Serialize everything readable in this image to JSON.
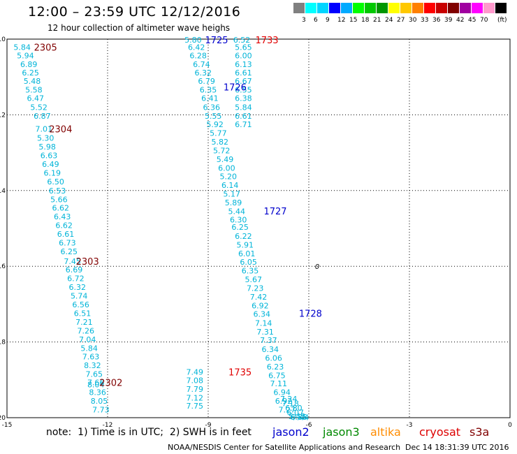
{
  "header": {
    "title": "12:00 – 23:59 UTC 12/12/2016",
    "subtitle": "12 hour collection of altimeter wave heighs"
  },
  "color_scale": {
    "labels": [
      "3",
      "6",
      "9",
      "12",
      "15",
      "18",
      "21",
      "24",
      "27",
      "30",
      "33",
      "36",
      "39",
      "42",
      "45",
      "70"
    ],
    "unit": "(ft)",
    "colors": [
      "#808080",
      "#00ffff",
      "#00d5ff",
      "#0000ff",
      "#00aaff",
      "#00ff00",
      "#00c800",
      "#009600",
      "#ffff00",
      "#ffc800",
      "#ff8000",
      "#ff0000",
      "#c80000",
      "#800000",
      "#a000a0",
      "#ff00ff",
      "#ff99cc",
      "#000000"
    ]
  },
  "chart_data": {
    "type": "scatter",
    "title": "12:00 – 23:59 UTC 12/12/2016",
    "subtitle": "12 hour collection of altimeter wave heighs",
    "xlim": [
      -15,
      0
    ],
    "ylim": [
      -20,
      -10
    ],
    "x_ticks": [
      "-15",
      "-12",
      "-9",
      "-6",
      "-3",
      "0"
    ],
    "y_ticks": [
      "-10",
      "-12",
      "-14",
      "-16",
      "-18",
      "-20"
    ],
    "grid": true,
    "value_color": "#00b4d8",
    "time_labels": [
      {
        "text": "2305",
        "x": -13.85,
        "y": -10.21,
        "color": "#800000"
      },
      {
        "text": "2304",
        "x": -13.4,
        "y": -12.37,
        "color": "#800000"
      },
      {
        "text": "2303",
        "x": -12.6,
        "y": -15.87,
        "color": "#800000"
      },
      {
        "text": "2302",
        "x": -11.9,
        "y": -19.07,
        "color": "#800000"
      },
      {
        "text": "1725",
        "x": -8.75,
        "y": -10.02,
        "color": "#0000cc"
      },
      {
        "text": "1733",
        "x": -7.25,
        "y": -10.02,
        "color": "#e00000"
      },
      {
        "text": "1726",
        "x": -8.2,
        "y": -11.26,
        "color": "#0000cc"
      },
      {
        "text": "1727",
        "x": -7.0,
        "y": -14.54,
        "color": "#0000cc"
      },
      {
        "text": "1728",
        "x": -5.95,
        "y": -17.24,
        "color": "#0000cc"
      },
      {
        "text": "1735",
        "x": -8.05,
        "y": -18.79,
        "color": "#e00000"
      }
    ],
    "tracks": [
      {
        "name": "",
        "points": [
          {
            "x": -14.55,
            "y": -10.21,
            "v": "5.84"
          },
          {
            "x": -14.45,
            "y": -10.43,
            "v": "5.94"
          },
          {
            "x": -14.35,
            "y": -10.66,
            "v": "6.89"
          },
          {
            "x": -14.3,
            "y": -10.89,
            "v": "6.25"
          },
          {
            "x": -14.25,
            "y": -11.11,
            "v": "5.48"
          },
          {
            "x": -14.2,
            "y": -11.34,
            "v": "5.58"
          },
          {
            "x": -14.15,
            "y": -11.56,
            "v": "6.47"
          },
          {
            "x": -14.05,
            "y": -11.8,
            "v": "5.52"
          },
          {
            "x": -13.95,
            "y": -12.03,
            "v": "6.87"
          },
          {
            "x": -13.9,
            "y": -12.37,
            "v": "7.01"
          },
          {
            "x": -13.85,
            "y": -12.61,
            "v": "5.30"
          },
          {
            "x": -13.8,
            "y": -12.84,
            "v": "5.98"
          },
          {
            "x": -13.75,
            "y": -13.07,
            "v": "6.63"
          },
          {
            "x": -13.7,
            "y": -13.3,
            "v": "6.49"
          },
          {
            "x": -13.65,
            "y": -13.53,
            "v": "6.19"
          },
          {
            "x": -13.55,
            "y": -13.76,
            "v": "6.50"
          },
          {
            "x": -13.5,
            "y": -14.0,
            "v": "6.53"
          },
          {
            "x": -13.45,
            "y": -14.23,
            "v": "5.66"
          },
          {
            "x": -13.4,
            "y": -14.46,
            "v": "6.62"
          },
          {
            "x": -13.35,
            "y": -14.69,
            "v": "6.43"
          },
          {
            "x": -13.3,
            "y": -14.92,
            "v": "6.62"
          },
          {
            "x": -13.25,
            "y": -15.15,
            "v": "6.61"
          },
          {
            "x": -13.2,
            "y": -15.38,
            "v": "6.73"
          },
          {
            "x": -13.15,
            "y": -15.61,
            "v": "6.25"
          },
          {
            "x": -13.05,
            "y": -15.87,
            "v": "7.45"
          },
          {
            "x": -13.0,
            "y": -16.09,
            "v": "6.69"
          },
          {
            "x": -12.95,
            "y": -16.32,
            "v": "6.72"
          },
          {
            "x": -12.9,
            "y": -16.55,
            "v": "6.32"
          },
          {
            "x": -12.85,
            "y": -16.78,
            "v": "5.74"
          },
          {
            "x": -12.8,
            "y": -17.01,
            "v": "6.56"
          },
          {
            "x": -12.75,
            "y": -17.24,
            "v": "6.51"
          },
          {
            "x": -12.7,
            "y": -17.47,
            "v": "7.21"
          },
          {
            "x": -12.65,
            "y": -17.7,
            "v": "7.26"
          },
          {
            "x": -12.6,
            "y": -17.93,
            "v": "7.04"
          },
          {
            "x": -12.55,
            "y": -18.16,
            "v": "5.84"
          },
          {
            "x": -12.5,
            "y": -18.39,
            "v": "7.63"
          },
          {
            "x": -12.45,
            "y": -18.62,
            "v": "8.32"
          },
          {
            "x": -12.4,
            "y": -18.85,
            "v": "7.65"
          },
          {
            "x": -12.35,
            "y": -19.07,
            "v": "7.66"
          },
          {
            "x": -12.35,
            "y": -19.12,
            "v": "8.04"
          },
          {
            "x": -12.3,
            "y": -19.33,
            "v": "8.36"
          },
          {
            "x": -12.25,
            "y": -19.56,
            "v": "8.05"
          },
          {
            "x": -12.2,
            "y": -19.79,
            "v": "7.73"
          }
        ]
      },
      {
        "name": "",
        "points": [
          {
            "x": -9.45,
            "y": -10.02,
            "v": "5.80"
          },
          {
            "x": -9.35,
            "y": -10.21,
            "v": "6.42"
          },
          {
            "x": -9.3,
            "y": -10.43,
            "v": "6.28"
          },
          {
            "x": -9.2,
            "y": -10.66,
            "v": "6.74"
          },
          {
            "x": -9.15,
            "y": -10.89,
            "v": "6.32"
          },
          {
            "x": -9.05,
            "y": -11.11,
            "v": "6.79"
          },
          {
            "x": -9.0,
            "y": -11.34,
            "v": "6.35"
          },
          {
            "x": -8.95,
            "y": -11.56,
            "v": "6.41"
          },
          {
            "x": -8.9,
            "y": -11.8,
            "v": "6.36"
          },
          {
            "x": -8.85,
            "y": -12.03,
            "v": "5.55"
          },
          {
            "x": -8.8,
            "y": -12.25,
            "v": "5.92"
          },
          {
            "x": -8.7,
            "y": -12.48,
            "v": "5.77"
          },
          {
            "x": -8.65,
            "y": -12.71,
            "v": "5.82"
          },
          {
            "x": -8.6,
            "y": -12.94,
            "v": "5.72"
          },
          {
            "x": -8.5,
            "y": -13.17,
            "v": "5.49"
          },
          {
            "x": -8.45,
            "y": -13.4,
            "v": "6.00"
          },
          {
            "x": -8.4,
            "y": -13.63,
            "v": "5.20"
          },
          {
            "x": -8.35,
            "y": -13.86,
            "v": "6.14"
          },
          {
            "x": -8.3,
            "y": -14.09,
            "v": "5.17"
          },
          {
            "x": -8.25,
            "y": -14.32,
            "v": "5.89"
          },
          {
            "x": -8.15,
            "y": -14.55,
            "v": "5.44"
          },
          {
            "x": -8.1,
            "y": -14.77,
            "v": "6.30"
          },
          {
            "x": -8.05,
            "y": -14.96,
            "v": "6.25"
          },
          {
            "x": -7.95,
            "y": -15.2,
            "v": "6.22"
          },
          {
            "x": -7.9,
            "y": -15.43,
            "v": "5.91"
          },
          {
            "x": -7.85,
            "y": -15.66,
            "v": "6.01"
          },
          {
            "x": -7.8,
            "y": -15.89,
            "v": "6.05"
          },
          {
            "x": -7.75,
            "y": -16.12,
            "v": "6.35"
          },
          {
            "x": -7.65,
            "y": -16.35,
            "v": "5.67"
          },
          {
            "x": -7.6,
            "y": -16.58,
            "v": "7.23"
          },
          {
            "x": -7.5,
            "y": -16.81,
            "v": "7.42"
          },
          {
            "x": -7.45,
            "y": -17.04,
            "v": "6.92"
          },
          {
            "x": -7.4,
            "y": -17.26,
            "v": "6.34"
          },
          {
            "x": -7.35,
            "y": -17.5,
            "v": "7.14"
          },
          {
            "x": -7.3,
            "y": -17.73,
            "v": "7.31"
          },
          {
            "x": -7.2,
            "y": -17.95,
            "v": "7.37"
          },
          {
            "x": -7.15,
            "y": -18.19,
            "v": "6.34"
          },
          {
            "x": -7.05,
            "y": -18.42,
            "v": "6.06"
          },
          {
            "x": -7.0,
            "y": -18.65,
            "v": "6.23"
          },
          {
            "x": -6.95,
            "y": -18.88,
            "v": "6.75"
          },
          {
            "x": -6.9,
            "y": -19.1,
            "v": "7.11"
          },
          {
            "x": -6.8,
            "y": -19.33,
            "v": "6.94"
          },
          {
            "x": -6.75,
            "y": -19.56,
            "v": "6.92"
          },
          {
            "x": -6.65,
            "y": -19.79,
            "v": "7.27"
          }
        ]
      },
      {
        "name": "",
        "points": [
          {
            "x": -6.6,
            "y": -19.5,
            "v": "7.24"
          },
          {
            "x": -6.55,
            "y": -19.62,
            "v": "7.18"
          },
          {
            "x": -6.45,
            "y": -19.74,
            "v": "6.80"
          },
          {
            "x": -6.4,
            "y": -19.86,
            "v": "6.07"
          },
          {
            "x": -6.35,
            "y": -19.96,
            "v": "5.43"
          },
          {
            "x": -6.3,
            "y": -19.98,
            "v": "6.85"
          },
          {
            "x": -6.25,
            "y": -19.99,
            "v": "7.44"
          }
        ]
      },
      {
        "name": "",
        "points": [
          {
            "x": -8.0,
            "y": -10.02,
            "v": "6.52"
          },
          {
            "x": -7.95,
            "y": -10.21,
            "v": "5.65"
          },
          {
            "x": -7.95,
            "y": -10.43,
            "v": "6.00"
          },
          {
            "x": -7.95,
            "y": -10.66,
            "v": "6.13"
          },
          {
            "x": -7.95,
            "y": -10.89,
            "v": "6.61"
          },
          {
            "x": -7.95,
            "y": -11.11,
            "v": "6.67"
          },
          {
            "x": -7.95,
            "y": -11.34,
            "v": "6.55"
          },
          {
            "x": -7.95,
            "y": -11.56,
            "v": "6.38"
          },
          {
            "x": -7.95,
            "y": -11.8,
            "v": "5.84"
          },
          {
            "x": -7.95,
            "y": -12.03,
            "v": "6.61"
          },
          {
            "x": -7.95,
            "y": -12.25,
            "v": "6.71"
          }
        ]
      },
      {
        "name": "",
        "points": [
          {
            "x": -9.4,
            "y": -18.79,
            "v": "7.49"
          },
          {
            "x": -9.4,
            "y": -19.01,
            "v": "7.08"
          },
          {
            "x": -9.4,
            "y": -19.24,
            "v": "7.79"
          },
          {
            "x": -9.4,
            "y": -19.47,
            "v": "7.12"
          },
          {
            "x": -9.4,
            "y": -19.69,
            "v": "7.75"
          }
        ]
      }
    ],
    "marker": {
      "text": "0",
      "x": -5.75,
      "y": -16.0
    }
  },
  "footer": {
    "note": "note:  1) Time is in UTC;  2) SWH is in feet",
    "satellites": [
      {
        "name": "jason2",
        "color": "#0000cc"
      },
      {
        "name": "jason3",
        "color": "#008800"
      },
      {
        "name": "altika",
        "color": "#ff8c00"
      },
      {
        "name": "cryosat",
        "color": "#dd0000"
      },
      {
        "name": "s3a",
        "color": "#800000"
      }
    ],
    "credit": "NOAA/NESDIS Center for Satellite Applications and Research",
    "timestamp": "Dec 14 18:31:39 UTC 2016"
  }
}
